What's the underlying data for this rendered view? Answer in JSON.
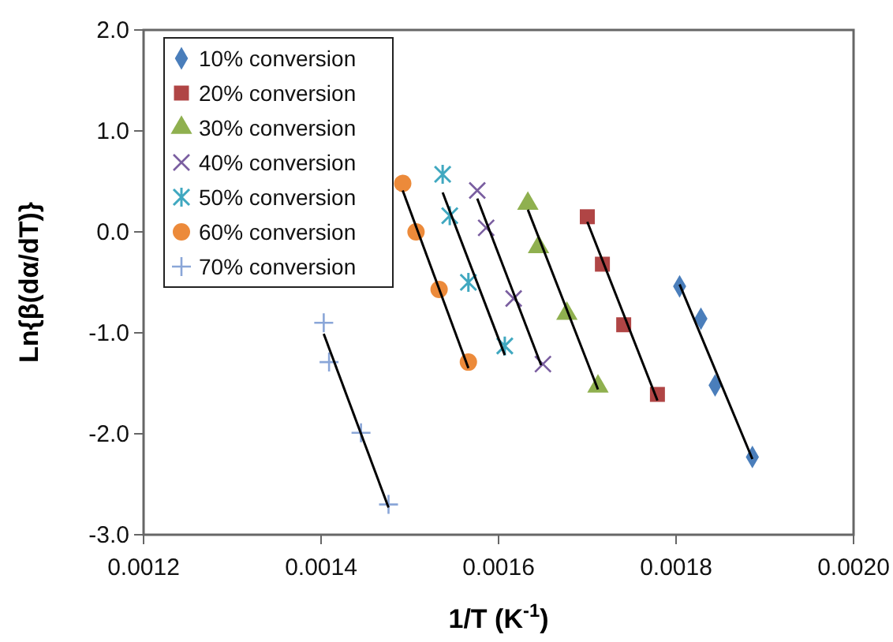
{
  "chart_data": {
    "type": "scatter",
    "xlabel": "1/T (K$^{-1}$)",
    "ylabel": "Ln{β(dα/dT)}",
    "xlim": [
      0.0012,
      0.002
    ],
    "ylim": [
      -3,
      2
    ],
    "xticks": [
      0.0012,
      0.0014,
      0.0016,
      0.0018,
      {
        "value": 0.002,
        "label": "0.0020"
      }
    ],
    "yticks": [
      {
        "value": -3,
        "label": "-3.0"
      },
      {
        "value": -2,
        "label": "-2.0"
      },
      {
        "value": -1,
        "label": "-1.0"
      },
      {
        "value": 0,
        "label": "0.0"
      },
      {
        "value": 1,
        "label": "1.0"
      },
      {
        "value": 2,
        "label": "2.0"
      }
    ],
    "grid": false,
    "legend": "top left",
    "series": [
      {
        "name": "10% conversion",
        "color": "#4a7ebb",
        "marker": "diamond",
        "x": [
          0.001804,
          0.001828,
          0.001844,
          0.001886
        ],
        "values": [
          -0.54,
          -0.86,
          -1.52,
          -2.23
        ]
      },
      {
        "name": "20% conversion",
        "color": "#b04545",
        "marker": "square",
        "x": [
          0.0017,
          0.001717,
          0.001741,
          0.001779
        ],
        "values": [
          0.15,
          -0.32,
          -0.92,
          -1.61
        ]
      },
      {
        "name": "30% conversion",
        "color": "#8fb04f",
        "marker": "triangle",
        "x": [
          0.001633,
          0.001645,
          0.001677,
          0.001712
        ],
        "values": [
          0.28,
          -0.15,
          -0.81,
          -1.53
        ]
      },
      {
        "name": "40% conversion",
        "color": "#7a5ea0",
        "marker": "x",
        "x": [
          0.001576,
          0.001586,
          0.001617,
          0.00165
        ],
        "values": [
          0.41,
          0.04,
          -0.66,
          -1.31
        ]
      },
      {
        "name": "50% conversion",
        "color": "#40a8c0",
        "marker": "cross",
        "x": [
          0.001537,
          0.001545,
          0.001566,
          0.001607
        ],
        "values": [
          0.57,
          0.16,
          -0.5,
          -1.13
        ]
      },
      {
        "name": "60% conversion",
        "color": "#ec8a3a",
        "marker": "circle",
        "x": [
          0.001492,
          0.001507,
          0.001533,
          0.001566
        ],
        "values": [
          0.48,
          0.0,
          -0.57,
          -1.29
        ]
      },
      {
        "name": "70% conversion",
        "color": "#8aa6d8",
        "marker": "plus",
        "x": [
          0.001403,
          0.001409,
          0.001445,
          0.001476
        ],
        "values": [
          -0.9,
          -1.29,
          -1.99,
          -2.7
        ]
      },
      {
        "type": "line",
        "color": "#000000",
        "marker": "none",
        "x": [
          0.001804,
          0.001886
        ],
        "values": [
          -0.52,
          -2.25
        ]
      },
      {
        "type": "line",
        "color": "#000000",
        "marker": "none",
        "x": [
          0.0017,
          0.001779
        ],
        "values": [
          0.1,
          -1.67
        ]
      },
      {
        "type": "line",
        "color": "#000000",
        "marker": "none",
        "x": [
          0.001633,
          0.001712
        ],
        "values": [
          0.22,
          -1.56
        ]
      },
      {
        "type": "line",
        "color": "#000000",
        "marker": "none",
        "x": [
          0.001576,
          0.001648
        ],
        "values": [
          0.33,
          -1.32
        ]
      },
      {
        "type": "line",
        "color": "#000000",
        "marker": "none",
        "x": [
          0.001537,
          0.001607
        ],
        "values": [
          0.39,
          -1.22
        ]
      },
      {
        "type": "line",
        "color": "#000000",
        "marker": "none",
        "x": [
          0.001492,
          0.001566
        ],
        "values": [
          0.41,
          -1.35
        ]
      },
      {
        "type": "line",
        "color": "#000000",
        "marker": "none",
        "x": [
          0.001403,
          0.001476
        ],
        "values": [
          -1.01,
          -2.73
        ]
      }
    ]
  }
}
